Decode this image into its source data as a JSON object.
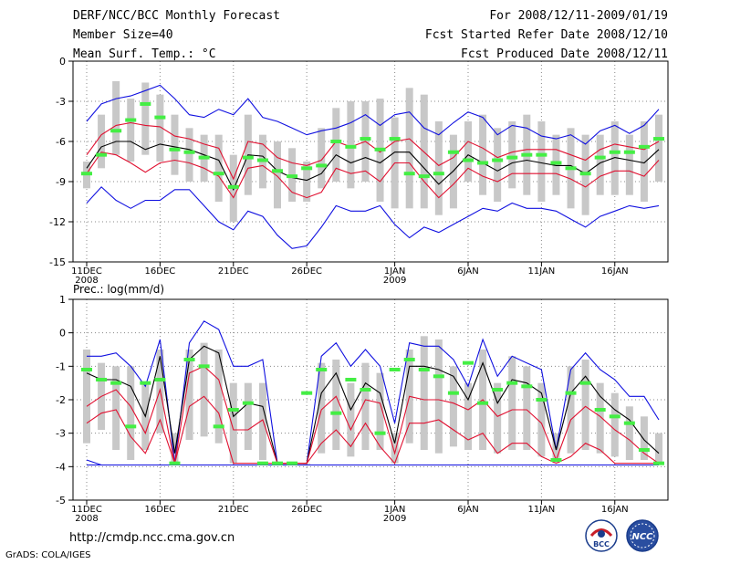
{
  "header": {
    "title": "DERF/NCC/BCC Monthly Forecast",
    "member_size": "Member Size=40",
    "variable": "Mean Surf. Temp.: °C",
    "period": "For 2008/12/11-2009/01/19",
    "started": "Fcst Started Refer Date 2008/12/10",
    "produced": "Fcst Produced Date 2008/12/11"
  },
  "footer": {
    "url": "http://cmdp.ncc.cma.gov.cn",
    "grads": "GrADS: COLA/IGES",
    "logo_left": "BCC",
    "logo_right": "NCC"
  },
  "colors": {
    "envelope": "#1010e0",
    "spread": "#e01030",
    "mean": "#000000",
    "box": "#c8c8c8",
    "marker": "#44ee44",
    "grid": "#888888"
  },
  "chart_data": [
    {
      "type": "line",
      "title": "Mean Surf. Temp.: °C",
      "ylim": [
        0,
        -15
      ],
      "yticks": [
        0,
        -3,
        -6,
        -9,
        -12,
        -15
      ],
      "ytick_labels": [
        "0",
        "-3",
        "-6",
        "-9",
        "-12",
        "-15"
      ],
      "x_start": 0,
      "x_end": 39,
      "xticks": [
        0,
        5,
        10,
        15,
        21,
        26,
        31,
        36
      ],
      "xtick_labels": [
        "11DEC",
        "16DEC",
        "21DEC",
        "26DEC",
        "1JAN",
        "6JAN",
        "11JAN",
        "16JAN"
      ],
      "year_labels": [
        {
          "x": 0,
          "text": "2008"
        },
        {
          "x": 21,
          "text": "2009"
        }
      ],
      "series": [
        {
          "name": "max",
          "color": "#1010e0",
          "values": [
            -4.5,
            -3.2,
            -2.8,
            -2.6,
            -2.2,
            -1.8,
            -2.8,
            -4.0,
            -4.2,
            -3.6,
            -4.0,
            -2.8,
            -4.2,
            -4.5,
            -5.0,
            -5.5,
            -5.2,
            -5.0,
            -4.6,
            -4.0,
            -4.8,
            -4.0,
            -3.8,
            -5.0,
            -5.5,
            -4.6,
            -3.8,
            -4.2,
            -5.5,
            -4.8,
            -5.0,
            -5.6,
            -5.8,
            -5.5,
            -6.2,
            -5.2,
            -4.8,
            -5.4,
            -4.8,
            -3.6
          ]
        },
        {
          "name": "upper",
          "color": "#e01030",
          "values": [
            -7.0,
            -5.5,
            -4.8,
            -4.6,
            -4.8,
            -4.9,
            -5.6,
            -5.8,
            -6.2,
            -6.5,
            -8.8,
            -6.0,
            -6.2,
            -7.2,
            -7.6,
            -7.8,
            -7.4,
            -6.0,
            -6.4,
            -6.0,
            -6.8,
            -6.0,
            -5.8,
            -6.8,
            -7.8,
            -7.2,
            -6.0,
            -6.5,
            -7.2,
            -6.8,
            -6.6,
            -6.6,
            -6.6,
            -7.0,
            -7.4,
            -6.6,
            -6.2,
            -6.4,
            -6.6,
            -6.0
          ]
        },
        {
          "name": "mean",
          "color": "#000000",
          "values": [
            -8.0,
            -6.4,
            -6.0,
            -6.0,
            -6.6,
            -6.2,
            -6.4,
            -6.6,
            -7.0,
            -7.4,
            -9.6,
            -7.0,
            -7.1,
            -8.2,
            -8.7,
            -8.9,
            -8.4,
            -7.0,
            -7.6,
            -7.2,
            -7.6,
            -6.8,
            -6.8,
            -8.0,
            -9.2,
            -8.2,
            -7.0,
            -7.6,
            -8.2,
            -7.6,
            -7.4,
            -7.6,
            -7.8,
            -7.8,
            -8.4,
            -7.6,
            -7.2,
            -7.4,
            -7.6,
            -6.6
          ]
        },
        {
          "name": "lower",
          "color": "#e01030",
          "values": [
            -8.4,
            -6.8,
            -7.0,
            -7.6,
            -8.3,
            -7.6,
            -7.4,
            -7.6,
            -8.0,
            -8.6,
            -10.2,
            -8.0,
            -7.8,
            -8.6,
            -9.8,
            -10.2,
            -9.8,
            -8.0,
            -8.4,
            -8.2,
            -9.0,
            -7.6,
            -7.6,
            -9.0,
            -10.2,
            -9.2,
            -8.0,
            -8.6,
            -9.0,
            -8.4,
            -8.4,
            -8.4,
            -8.4,
            -8.8,
            -9.4,
            -8.6,
            -8.2,
            -8.2,
            -8.6,
            -7.4
          ]
        },
        {
          "name": "min",
          "color": "#1010e0",
          "values": [
            -10.6,
            -9.4,
            -10.4,
            -11.0,
            -10.4,
            -10.4,
            -9.6,
            -9.6,
            -10.8,
            -12.0,
            -12.6,
            -11.2,
            -11.6,
            -13.0,
            -14.0,
            -13.8,
            -12.4,
            -10.8,
            -11.2,
            -11.2,
            -10.8,
            -12.2,
            -13.2,
            -12.4,
            -12.8,
            -12.2,
            -11.6,
            -11.0,
            -11.2,
            -10.6,
            -11.0,
            -11.0,
            -11.2,
            -11.8,
            -12.4,
            -11.6,
            -11.2,
            -10.8,
            -11.0,
            -10.8
          ]
        }
      ],
      "box_high": [
        -7.5,
        -4.0,
        -1.5,
        -2.8,
        -1.6,
        -2.5,
        -4.0,
        -5.0,
        -5.5,
        -5.5,
        -7.0,
        -4.0,
        -5.5,
        -6.0,
        -6.5,
        -7.5,
        -5.0,
        -3.5,
        -3.0,
        -3.0,
        -2.8,
        -4.2,
        -2.0,
        -2.5,
        -4.5,
        -5.5,
        -4.5,
        -4.0,
        -5.0,
        -4.5,
        -4.0,
        -4.5,
        -5.5,
        -5.0,
        -5.5,
        -5.5,
        -4.5,
        -5.5,
        -4.5,
        -4.0
      ],
      "box_low": [
        -9.5,
        -8.0,
        -7.0,
        -7.5,
        -7.0,
        -7.5,
        -8.5,
        -9.0,
        -9.0,
        -10.5,
        -12.0,
        -10.0,
        -9.5,
        -11.0,
        -10.5,
        -10.5,
        -9.5,
        -9.0,
        -9.5,
        -9.0,
        -10.5,
        -11.0,
        -11.0,
        -11.0,
        -11.5,
        -11.0,
        -9.0,
        -10.0,
        -10.5,
        -9.5,
        -10.0,
        -10.5,
        -10.0,
        -11.0,
        -11.5,
        -10.0,
        -10.0,
        -10.0,
        -10.5,
        -9.0
      ],
      "markers": [
        -8.4,
        -7.0,
        -5.2,
        -4.4,
        -3.2,
        -4.2,
        -6.6,
        -6.8,
        -7.2,
        -8.4,
        -9.4,
        -7.2,
        -7.4,
        -8.2,
        -8.6,
        -8.0,
        -7.8,
        -6.0,
        -6.4,
        -5.8,
        -6.6,
        -5.8,
        -8.4,
        -8.6,
        -8.4,
        -6.8,
        -7.4,
        -7.6,
        -7.4,
        -7.2,
        -7.0,
        -7.0,
        -7.6,
        -8.0,
        -8.4,
        -7.2,
        -6.8,
        -6.8,
        -6.4,
        -5.8
      ]
    },
    {
      "type": "line",
      "title": "Prec.: log(mm/d)",
      "ylim": [
        1,
        -5
      ],
      "yticks": [
        1,
        0,
        -1,
        -2,
        -3,
        -4,
        -5
      ],
      "ytick_labels": [
        "1",
        "0",
        "-1",
        "-2",
        "-3",
        "-4",
        "-5"
      ],
      "x_start": 0,
      "x_end": 39,
      "xticks": [
        0,
        5,
        10,
        15,
        21,
        26,
        31,
        36
      ],
      "xtick_labels": [
        "11DEC",
        "16DEC",
        "21DEC",
        "26DEC",
        "1JAN",
        "6JAN",
        "11JAN",
        "16JAN"
      ],
      "year_labels": [
        {
          "x": 0,
          "text": "2008"
        },
        {
          "x": 21,
          "text": "2009"
        }
      ],
      "series": [
        {
          "name": "max",
          "color": "#1010e0",
          "values": [
            -0.7,
            -0.7,
            -0.6,
            -1.0,
            -1.6,
            -0.2,
            -3.9,
            -0.3,
            0.35,
            0.1,
            -1.0,
            -1.0,
            -0.8,
            -3.9,
            -3.9,
            -3.9,
            -0.7,
            -0.3,
            -1.0,
            -0.5,
            -1.0,
            -2.7,
            -0.3,
            -0.4,
            -0.4,
            -0.8,
            -1.6,
            -0.2,
            -1.3,
            -0.7,
            -0.9,
            -1.1,
            -3.5,
            -1.1,
            -0.6,
            -1.1,
            -1.4,
            -1.9,
            -1.9,
            -2.6
          ]
        },
        {
          "name": "mean",
          "color": "#000000",
          "values": [
            -1.2,
            -1.4,
            -1.4,
            -1.6,
            -2.5,
            -0.7,
            -3.6,
            -0.8,
            -0.4,
            -0.6,
            -2.5,
            -2.1,
            -2.2,
            -3.9,
            -3.9,
            -3.9,
            -1.8,
            -1.2,
            -2.3,
            -1.5,
            -1.8,
            -3.3,
            -1.0,
            -1.0,
            -1.1,
            -1.3,
            -2.0,
            -0.9,
            -2.1,
            -1.4,
            -1.5,
            -1.8,
            -3.5,
            -1.8,
            -1.3,
            -1.9,
            -2.3,
            -2.6,
            -3.2,
            -3.6
          ]
        },
        {
          "name": "upper",
          "color": "#e01030",
          "values": [
            -2.2,
            -1.9,
            -1.7,
            -2.2,
            -3.0,
            -1.7,
            -3.9,
            -1.2,
            -1.0,
            -1.4,
            -2.9,
            -2.9,
            -2.6,
            -3.9,
            -3.9,
            -3.9,
            -2.3,
            -1.9,
            -2.9,
            -2.0,
            -2.1,
            -3.6,
            -1.9,
            -2.0,
            -2.0,
            -2.1,
            -2.3,
            -2.0,
            -2.5,
            -2.3,
            -2.3,
            -2.7,
            -3.8,
            -2.6,
            -2.2,
            -2.5,
            -2.9,
            -3.2,
            -3.6,
            -3.9
          ]
        },
        {
          "name": "lower",
          "color": "#e01030",
          "values": [
            -2.7,
            -2.4,
            -2.3,
            -3.1,
            -3.6,
            -2.6,
            -3.9,
            -2.2,
            -1.9,
            -2.4,
            -3.9,
            -3.9,
            -3.9,
            -3.9,
            -3.9,
            -3.9,
            -3.3,
            -2.9,
            -3.4,
            -2.7,
            -3.4,
            -3.9,
            -2.7,
            -2.7,
            -2.6,
            -2.9,
            -3.2,
            -3.0,
            -3.6,
            -3.3,
            -3.3,
            -3.7,
            -3.9,
            -3.7,
            -3.3,
            -3.5,
            -3.9,
            -3.9,
            -3.9,
            -3.9
          ]
        },
        {
          "name": "min",
          "color": "#1010e0",
          "values": [
            -3.8,
            -3.95,
            -3.95,
            -3.95,
            -3.95,
            -3.95,
            -3.95,
            -3.95,
            -3.95,
            -3.95,
            -3.95,
            -3.95,
            -3.95,
            -3.95,
            -3.95,
            -3.95,
            -3.95,
            -3.95,
            -3.95,
            -3.95,
            -3.95,
            -3.95,
            -3.95,
            -3.95,
            -3.95,
            -3.95,
            -3.95,
            -3.95,
            -3.95,
            -3.95,
            -3.95,
            -3.95,
            -3.95,
            -3.95,
            -3.95,
            -3.95,
            -3.95,
            -3.95,
            -3.95,
            -3.95
          ]
        },
        {
          "name": "zero",
          "color": "#1010e0",
          "values": [
            -3.95,
            -3.95,
            -3.95,
            -3.95,
            -3.95,
            -3.95,
            -3.95,
            -3.95,
            -3.95,
            -3.95,
            -3.95,
            -3.95,
            -3.95,
            -3.95,
            -3.95,
            -3.95,
            -3.95,
            -3.95,
            -3.95,
            -3.95,
            -3.95,
            -3.95,
            -3.95,
            -3.95,
            -3.95,
            -3.95,
            -3.95,
            -3.95,
            -3.95,
            -3.95,
            -3.95,
            -3.95,
            -3.95,
            -3.95,
            -3.95,
            -3.95,
            -3.95,
            -3.95,
            -3.95,
            -3.95
          ]
        }
      ],
      "box_high": [
        -0.5,
        -0.9,
        -1.0,
        -1.0,
        -1.5,
        -0.5,
        -3.0,
        -0.5,
        -0.3,
        -0.5,
        -1.5,
        -1.5,
        -1.5,
        -3.9,
        -3.9,
        -3.9,
        -0.9,
        -0.8,
        -1.5,
        -0.9,
        -1.2,
        -3.0,
        -0.5,
        -0.1,
        -0.2,
        -1.0,
        -1.5,
        -0.5,
        -1.5,
        -0.7,
        -1.0,
        -1.5,
        -3.0,
        -1.0,
        -0.8,
        -1.5,
        -1.8,
        -2.2,
        -2.5,
        -3.0
      ],
      "box_low": [
        -3.3,
        -2.9,
        -3.5,
        -3.8,
        -3.5,
        -3.0,
        -3.9,
        -3.2,
        -3.1,
        -3.3,
        -3.9,
        -3.5,
        -3.8,
        -3.9,
        -3.9,
        -3.9,
        -3.6,
        -3.5,
        -3.7,
        -3.5,
        -3.5,
        -3.9,
        -3.3,
        -3.5,
        -3.6,
        -3.4,
        -3.5,
        -3.5,
        -3.6,
        -3.5,
        -3.5,
        -3.7,
        -3.9,
        -3.6,
        -3.5,
        -3.6,
        -3.7,
        -3.8,
        -3.8,
        -3.9
      ],
      "markers": [
        -1.1,
        -1.4,
        -1.5,
        -2.8,
        -1.5,
        -1.4,
        -3.9,
        -0.8,
        -1.0,
        -2.8,
        -2.3,
        -2.1,
        -3.9,
        -3.9,
        -3.9,
        -1.8,
        -1.1,
        -2.4,
        -1.4,
        -1.7,
        -3.0,
        -1.1,
        -0.8,
        -1.1,
        -1.3,
        -1.8,
        -0.9,
        -2.1,
        -1.7,
        -1.5,
        -1.6,
        -2.0,
        -3.8,
        -1.8,
        -1.5,
        -2.3,
        -2.5,
        -2.7,
        -3.5,
        -3.9
      ]
    }
  ]
}
